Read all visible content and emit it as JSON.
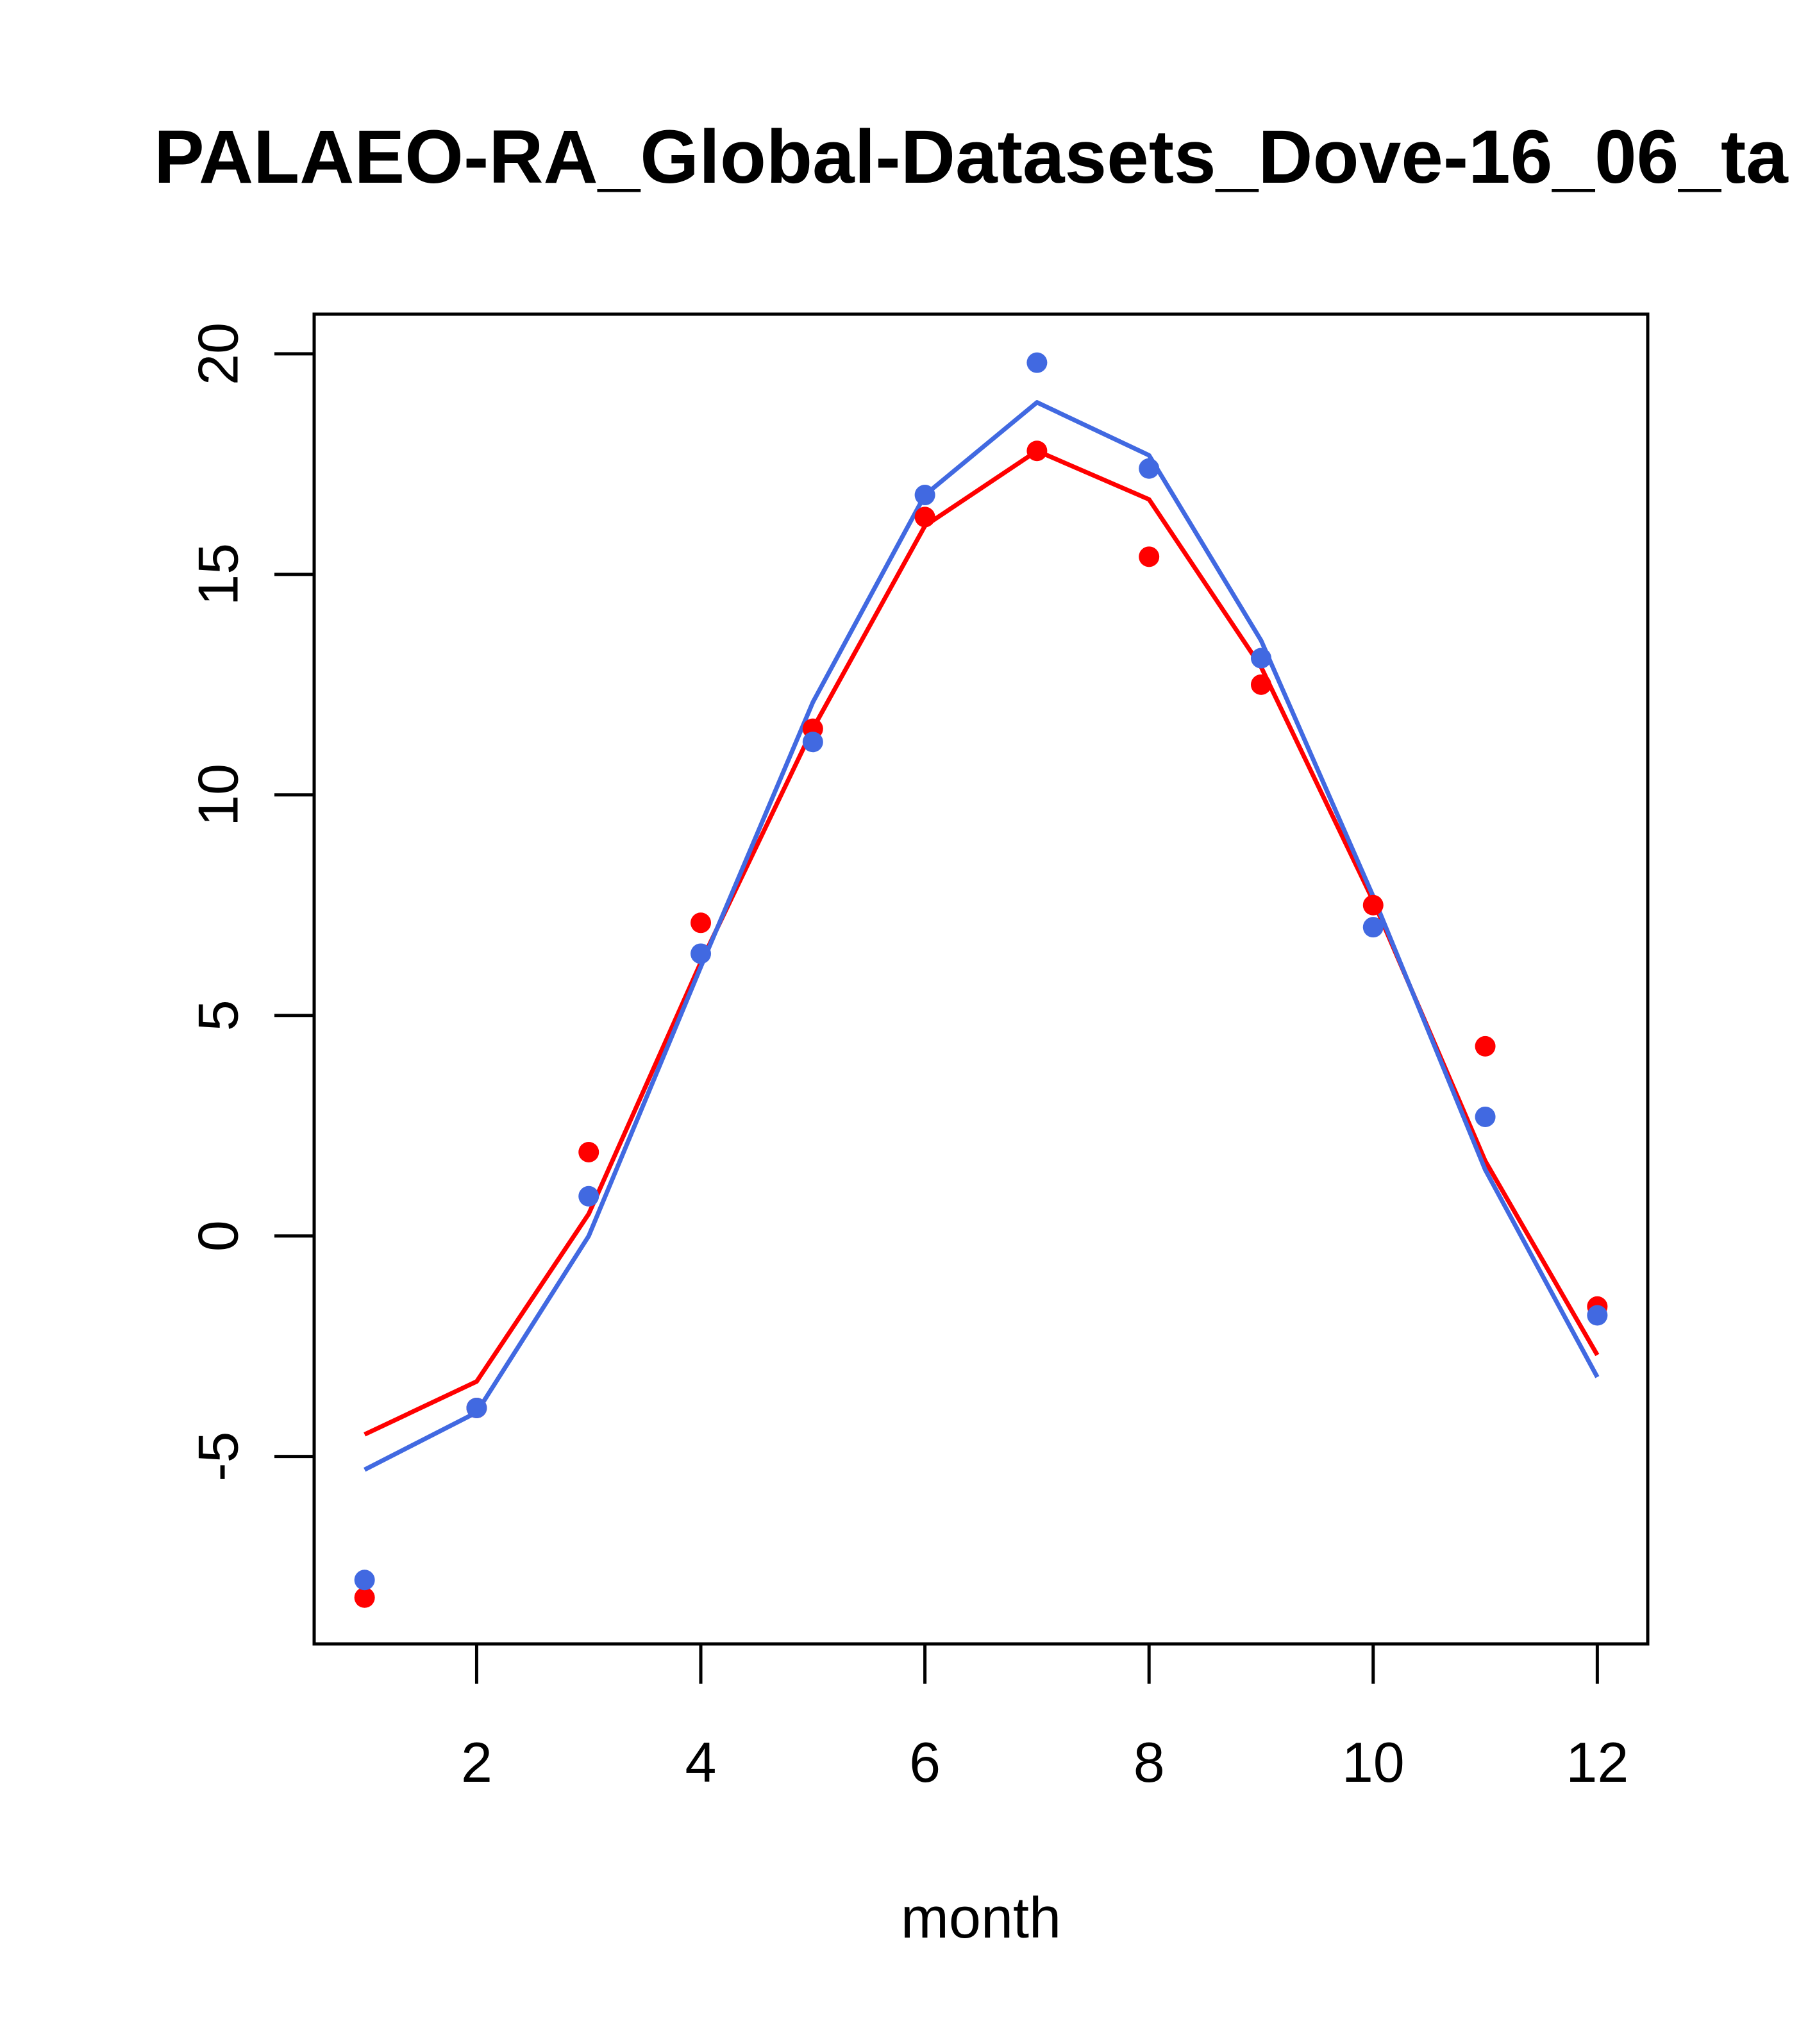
{
  "chart_data": {
    "type": "line",
    "title": "PALAEO-RA_Global-Datasets_Dove-16_06_ta",
    "xlabel": "month",
    "ylabel": "",
    "xlim": [
      0.55,
      12.45
    ],
    "ylim": [
      -9.25,
      20.9
    ],
    "x_ticks": [
      2,
      4,
      6,
      8,
      10,
      12
    ],
    "y_ticks": [
      -5,
      0,
      5,
      10,
      15,
      20
    ],
    "x_tick_labels": [
      "2",
      "4",
      "6",
      "8",
      "10",
      "12"
    ],
    "y_tick_labels": [
      "-5",
      "0",
      "5",
      "10",
      "15",
      "20"
    ],
    "x": [
      1,
      2,
      3,
      4,
      5,
      6,
      7,
      8,
      9,
      10,
      11,
      12
    ],
    "series": [
      {
        "name": "red-points",
        "kind": "points",
        "color": "#ff0000",
        "values": [
          -8.2,
          -3.9,
          1.9,
          7.1,
          11.5,
          16.3,
          17.8,
          15.4,
          12.5,
          7.5,
          4.3,
          -1.6
        ]
      },
      {
        "name": "blue-points",
        "kind": "points",
        "color": "#4169e1",
        "values": [
          -7.8,
          -3.9,
          0.9,
          6.4,
          11.2,
          16.8,
          19.8,
          17.4,
          13.1,
          7.0,
          2.7,
          -1.8
        ]
      },
      {
        "name": "red-line",
        "kind": "line",
        "color": "#ff0000",
        "values": [
          -4.5,
          -3.3,
          0.5,
          6.2,
          11.5,
          16.1,
          17.8,
          16.7,
          12.9,
          7.6,
          1.7,
          -2.7
        ]
      },
      {
        "name": "blue-line",
        "kind": "line",
        "color": "#4169e1",
        "values": [
          -5.3,
          -4.0,
          0.0,
          6.1,
          12.1,
          16.8,
          18.9,
          17.7,
          13.5,
          7.7,
          1.5,
          -3.2
        ]
      }
    ]
  }
}
